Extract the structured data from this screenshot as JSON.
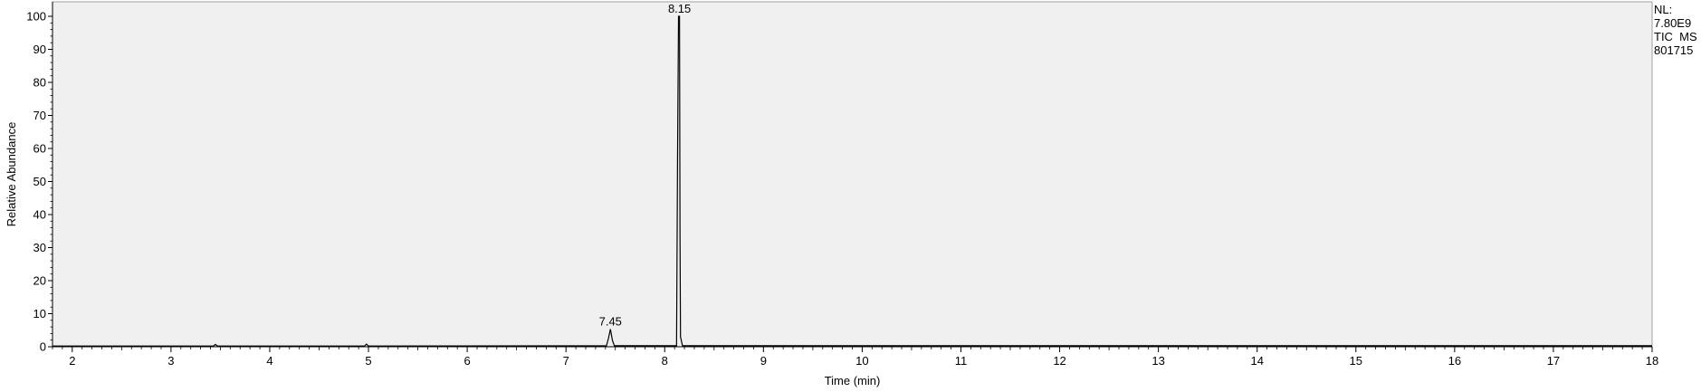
{
  "chart_data": {
    "type": "line",
    "title": "",
    "xlabel": "Time (min)",
    "ylabel": "Relative Abundance",
    "xlim": [
      1.8,
      18
    ],
    "ylim": [
      0,
      100
    ],
    "x_ticks": [
      2,
      3,
      4,
      5,
      6,
      7,
      8,
      9,
      10,
      11,
      12,
      13,
      14,
      15,
      16,
      17,
      18
    ],
    "y_ticks": [
      0,
      10,
      20,
      30,
      40,
      50,
      60,
      70,
      80,
      90,
      100
    ],
    "grid": false,
    "background": "#f0f0f0",
    "line_color": "#000000",
    "series": [
      {
        "points": [
          [
            1.8,
            0.2
          ],
          [
            3.43,
            0.2
          ],
          [
            3.45,
            0.7
          ],
          [
            3.47,
            0.2
          ],
          [
            4.96,
            0.2
          ],
          [
            4.98,
            0.8
          ],
          [
            5.0,
            0.2
          ],
          [
            7.41,
            0.3
          ],
          [
            7.43,
            2.5
          ],
          [
            7.45,
            5.3
          ],
          [
            7.47,
            2.0
          ],
          [
            7.49,
            0.3
          ],
          [
            8.12,
            0.3
          ],
          [
            8.13,
            57.0
          ],
          [
            8.14,
            100
          ],
          [
            8.15,
            100
          ],
          [
            8.155,
            34.0
          ],
          [
            8.16,
            3.0
          ],
          [
            8.18,
            0.3
          ],
          [
            18,
            0.3
          ]
        ]
      }
    ],
    "peak_labels": [
      {
        "x": 8.15,
        "y": 100,
        "text": "8.15"
      },
      {
        "x": 7.45,
        "y": 5.3,
        "text": "7.45"
      }
    ]
  },
  "info": {
    "nl_label": "NL:",
    "nl_value": "7.80E9",
    "trace": "TIC  MS",
    "sample": "801715"
  }
}
